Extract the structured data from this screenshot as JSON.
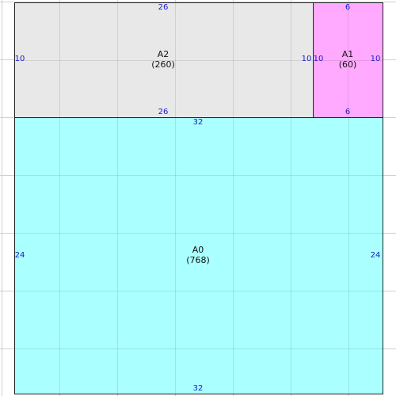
{
  "regions": {
    "a2": {
      "name": "A2",
      "area": "(260)",
      "top": "26",
      "bottom": "26",
      "left": "10",
      "right": "10",
      "fill": "#e8e8e8"
    },
    "a1": {
      "name": "A1",
      "area": "(60)",
      "top": "6",
      "bottom": "6",
      "left": "10",
      "right": "10",
      "fill": "#ffaaff"
    },
    "a0": {
      "name": "A0",
      "area": "(768)",
      "top": "32",
      "bottom": "32",
      "left": "24",
      "right": "24",
      "fill": "#aaffff"
    }
  },
  "colors": {
    "dimension_text": "#1a1acc",
    "grid": "#d0d0d0",
    "border": "#222222"
  }
}
